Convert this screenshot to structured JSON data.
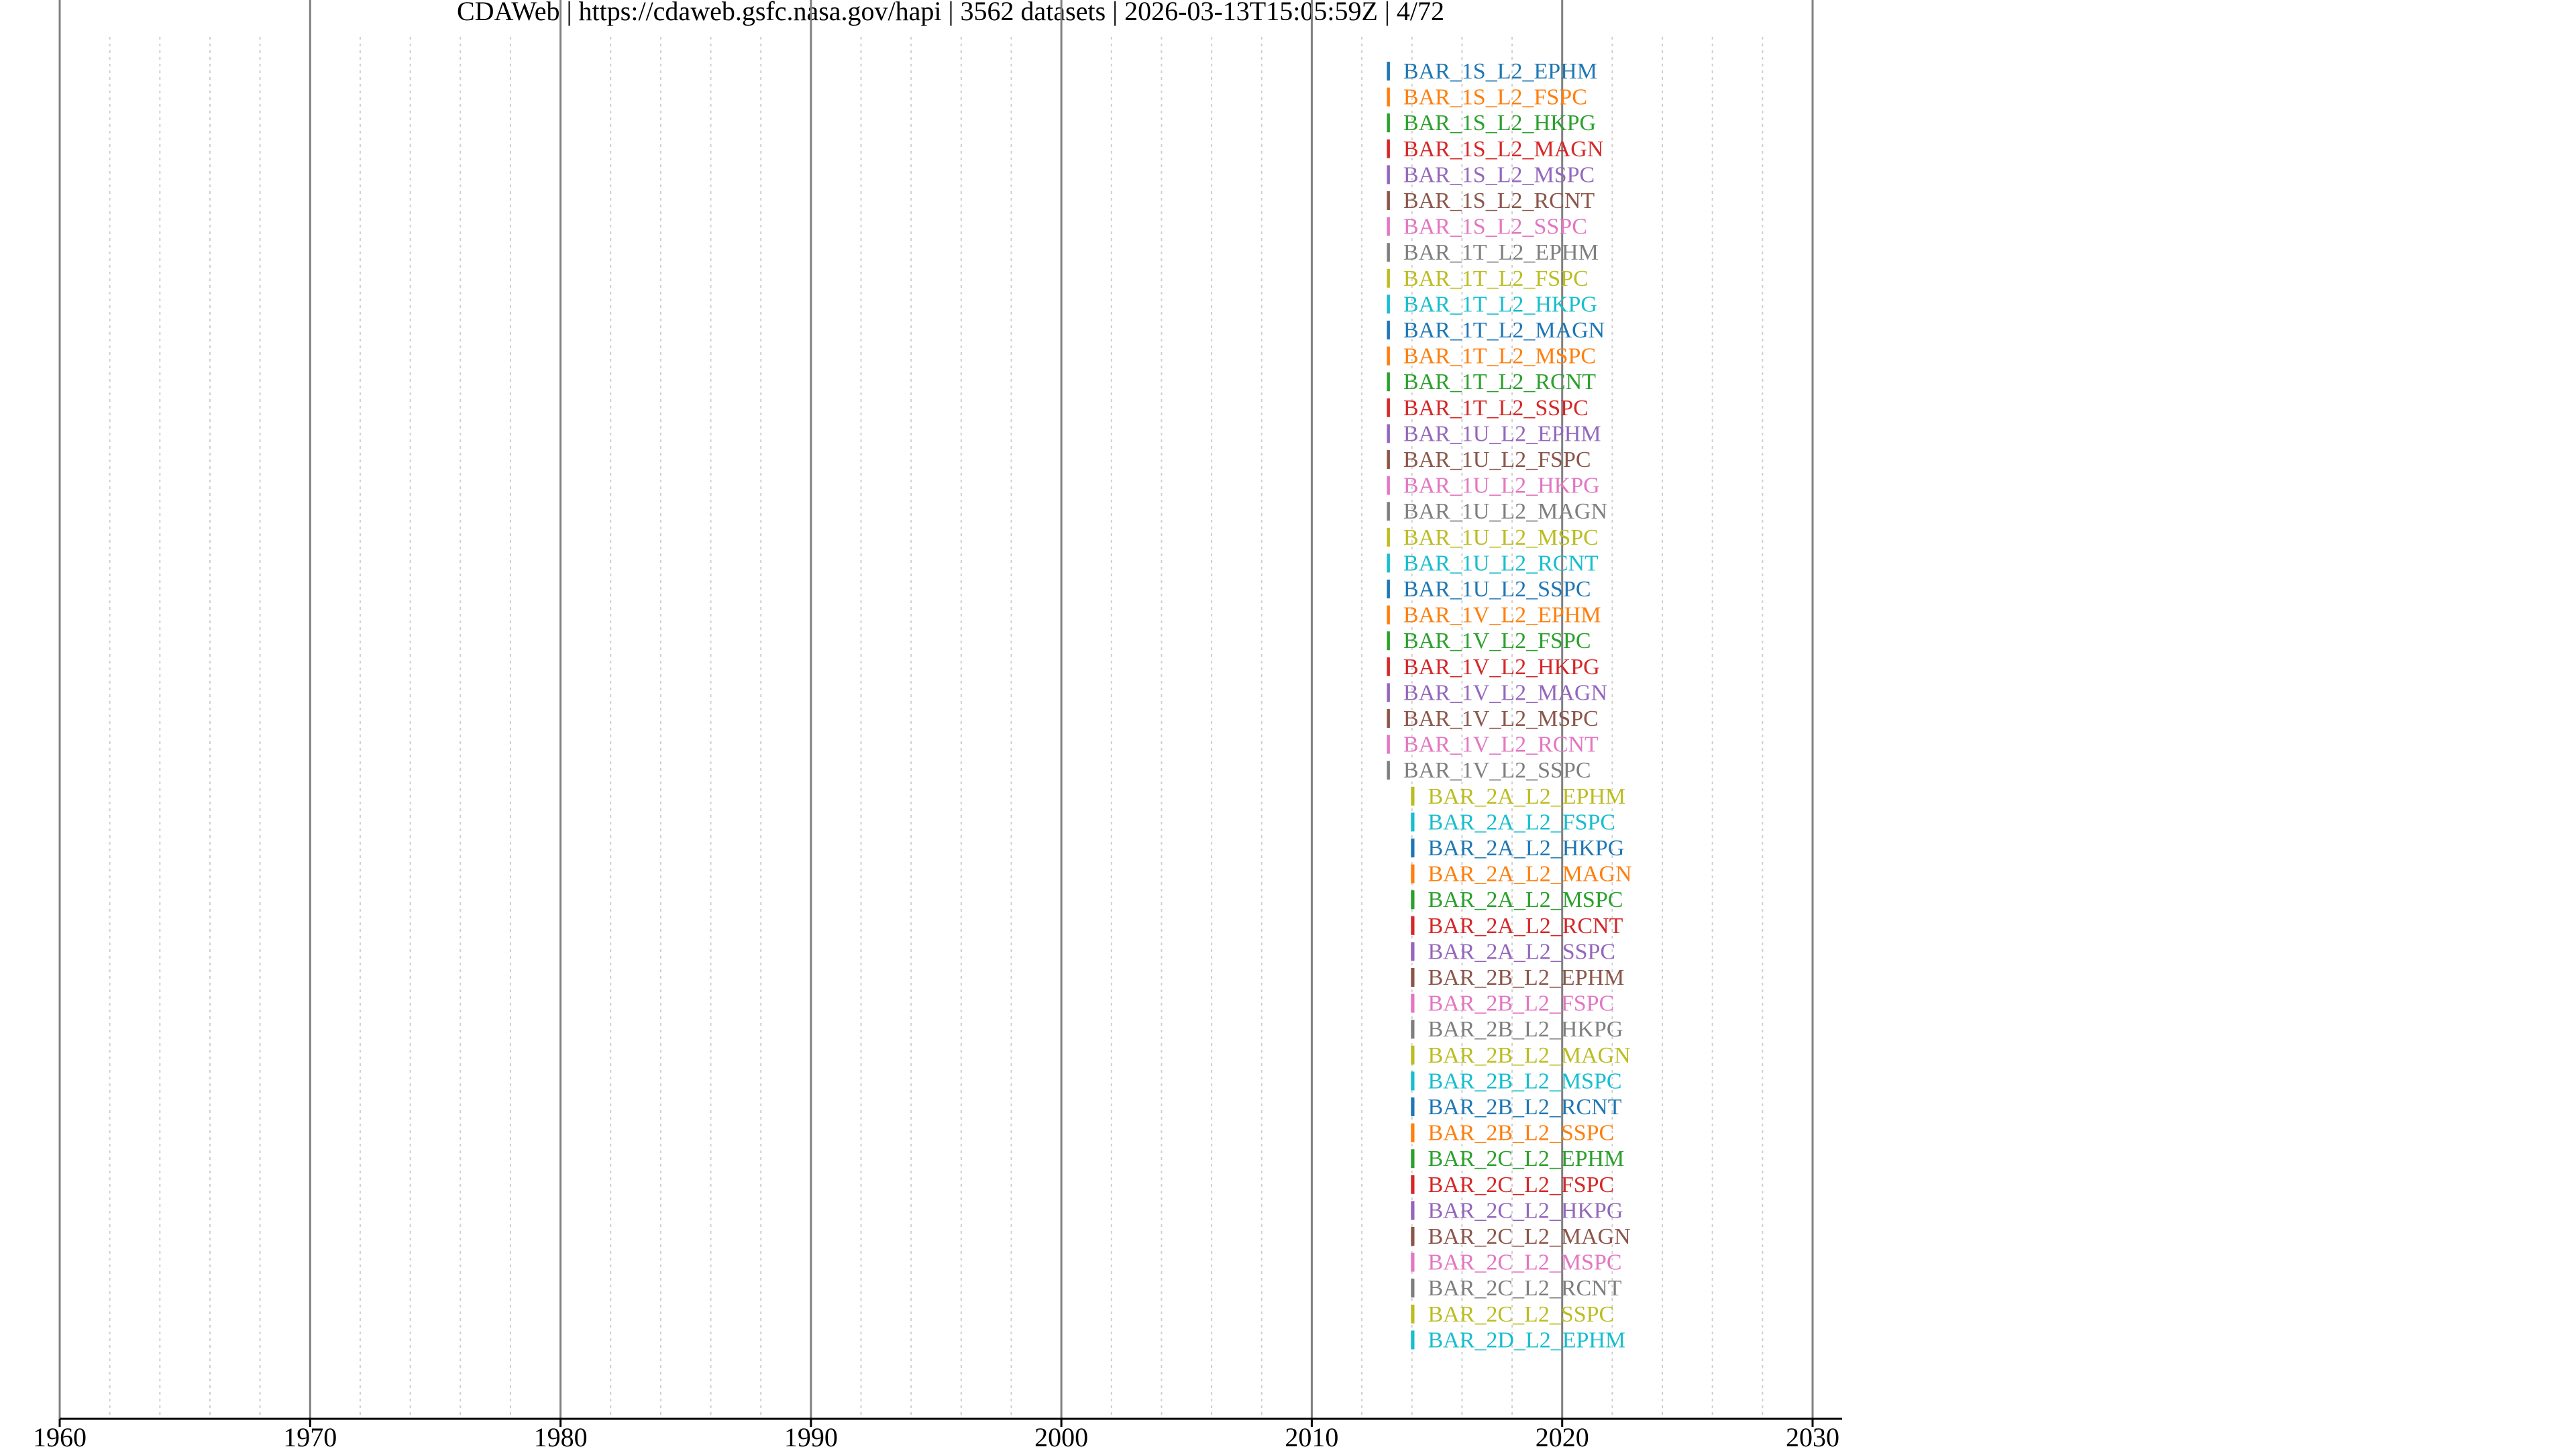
{
  "chart_data": {
    "type": "timeline",
    "title": "CDAWeb | https://cdaweb.gsfc.nasa.gov/hapi | 3562 datasets | 2026-03-13T15:05:59Z | 4/72",
    "xlim": [
      1960,
      2030
    ],
    "xticks": [
      1960,
      1970,
      1980,
      1990,
      2000,
      2010,
      2020,
      2030
    ],
    "xminor": [
      1962,
      1964,
      1966,
      1968,
      1972,
      1974,
      1976,
      1978,
      1982,
      1984,
      1986,
      1988,
      1992,
      1994,
      1996,
      1998,
      2002,
      2004,
      2006,
      2008,
      2012,
      2014,
      2016,
      2018,
      2022,
      2024,
      2026,
      2028
    ],
    "grid": true,
    "series": [
      {
        "name": "BAR_1S_L2_EPHM",
        "color": "#1f77b4",
        "values": [
          2013.0,
          2013.12
        ]
      },
      {
        "name": "BAR_1S_L2_FSPC",
        "color": "#ff7f0e",
        "values": [
          2013.0,
          2013.12
        ]
      },
      {
        "name": "BAR_1S_L2_HKPG",
        "color": "#2ca02c",
        "values": [
          2013.0,
          2013.12
        ]
      },
      {
        "name": "BAR_1S_L2_MAGN",
        "color": "#d62728",
        "values": [
          2013.0,
          2013.12
        ]
      },
      {
        "name": "BAR_1S_L2_MSPC",
        "color": "#9467bd",
        "values": [
          2013.0,
          2013.12
        ]
      },
      {
        "name": "BAR_1S_L2_RCNT",
        "color": "#8c564b",
        "values": [
          2013.0,
          2013.12
        ]
      },
      {
        "name": "BAR_1S_L2_SSPC",
        "color": "#e377c2",
        "values": [
          2013.0,
          2013.12
        ]
      },
      {
        "name": "BAR_1T_L2_EPHM",
        "color": "#7f7f7f",
        "values": [
          2013.0,
          2013.12
        ]
      },
      {
        "name": "BAR_1T_L2_FSPC",
        "color": "#bcbd22",
        "values": [
          2013.0,
          2013.12
        ]
      },
      {
        "name": "BAR_1T_L2_HKPG",
        "color": "#17becf",
        "values": [
          2013.0,
          2013.12
        ]
      },
      {
        "name": "BAR_1T_L2_MAGN",
        "color": "#1f77b4",
        "values": [
          2013.0,
          2013.12
        ]
      },
      {
        "name": "BAR_1T_L2_MSPC",
        "color": "#ff7f0e",
        "values": [
          2013.0,
          2013.12
        ]
      },
      {
        "name": "BAR_1T_L2_RCNT",
        "color": "#2ca02c",
        "values": [
          2013.0,
          2013.12
        ]
      },
      {
        "name": "BAR_1T_L2_SSPC",
        "color": "#d62728",
        "values": [
          2013.0,
          2013.12
        ]
      },
      {
        "name": "BAR_1U_L2_EPHM",
        "color": "#9467bd",
        "values": [
          2013.0,
          2013.12
        ]
      },
      {
        "name": "BAR_1U_L2_FSPC",
        "color": "#8c564b",
        "values": [
          2013.0,
          2013.12
        ]
      },
      {
        "name": "BAR_1U_L2_HKPG",
        "color": "#e377c2",
        "values": [
          2013.0,
          2013.12
        ]
      },
      {
        "name": "BAR_1U_L2_MAGN",
        "color": "#7f7f7f",
        "values": [
          2013.0,
          2013.12
        ]
      },
      {
        "name": "BAR_1U_L2_MSPC",
        "color": "#bcbd22",
        "values": [
          2013.0,
          2013.12
        ]
      },
      {
        "name": "BAR_1U_L2_RCNT",
        "color": "#17becf",
        "values": [
          2013.0,
          2013.12
        ]
      },
      {
        "name": "BAR_1U_L2_SSPC",
        "color": "#1f77b4",
        "values": [
          2013.0,
          2013.12
        ]
      },
      {
        "name": "BAR_1V_L2_EPHM",
        "color": "#ff7f0e",
        "values": [
          2013.0,
          2013.12
        ]
      },
      {
        "name": "BAR_1V_L2_FSPC",
        "color": "#2ca02c",
        "values": [
          2013.0,
          2013.12
        ]
      },
      {
        "name": "BAR_1V_L2_HKPG",
        "color": "#d62728",
        "values": [
          2013.0,
          2013.12
        ]
      },
      {
        "name": "BAR_1V_L2_MAGN",
        "color": "#9467bd",
        "values": [
          2013.0,
          2013.12
        ]
      },
      {
        "name": "BAR_1V_L2_MSPC",
        "color": "#8c564b",
        "values": [
          2013.0,
          2013.12
        ]
      },
      {
        "name": "BAR_1V_L2_RCNT",
        "color": "#e377c2",
        "values": [
          2013.0,
          2013.12
        ]
      },
      {
        "name": "BAR_1V_L2_SSPC",
        "color": "#7f7f7f",
        "values": [
          2013.0,
          2013.12
        ]
      },
      {
        "name": "BAR_2A_L2_EPHM",
        "color": "#bcbd22",
        "values": [
          2013.96,
          2014.1
        ]
      },
      {
        "name": "BAR_2A_L2_FSPC",
        "color": "#17becf",
        "values": [
          2013.96,
          2014.1
        ]
      },
      {
        "name": "BAR_2A_L2_HKPG",
        "color": "#1f77b4",
        "values": [
          2013.96,
          2014.1
        ]
      },
      {
        "name": "BAR_2A_L2_MAGN",
        "color": "#ff7f0e",
        "values": [
          2013.96,
          2014.1
        ]
      },
      {
        "name": "BAR_2A_L2_MSPC",
        "color": "#2ca02c",
        "values": [
          2013.96,
          2014.1
        ]
      },
      {
        "name": "BAR_2A_L2_RCNT",
        "color": "#d62728",
        "values": [
          2013.96,
          2014.1
        ]
      },
      {
        "name": "BAR_2A_L2_SSPC",
        "color": "#9467bd",
        "values": [
          2013.96,
          2014.1
        ]
      },
      {
        "name": "BAR_2B_L2_EPHM",
        "color": "#8c564b",
        "values": [
          2013.96,
          2014.1
        ]
      },
      {
        "name": "BAR_2B_L2_FSPC",
        "color": "#e377c2",
        "values": [
          2013.96,
          2014.1
        ]
      },
      {
        "name": "BAR_2B_L2_HKPG",
        "color": "#7f7f7f",
        "values": [
          2013.96,
          2014.1
        ]
      },
      {
        "name": "BAR_2B_L2_MAGN",
        "color": "#bcbd22",
        "values": [
          2013.96,
          2014.1
        ]
      },
      {
        "name": "BAR_2B_L2_MSPC",
        "color": "#17becf",
        "values": [
          2013.96,
          2014.1
        ]
      },
      {
        "name": "BAR_2B_L2_RCNT",
        "color": "#1f77b4",
        "values": [
          2013.96,
          2014.1
        ]
      },
      {
        "name": "BAR_2B_L2_SSPC",
        "color": "#ff7f0e",
        "values": [
          2013.96,
          2014.1
        ]
      },
      {
        "name": "BAR_2C_L2_EPHM",
        "color": "#2ca02c",
        "values": [
          2013.96,
          2014.1
        ]
      },
      {
        "name": "BAR_2C_L2_FSPC",
        "color": "#d62728",
        "values": [
          2013.96,
          2014.1
        ]
      },
      {
        "name": "BAR_2C_L2_HKPG",
        "color": "#9467bd",
        "values": [
          2013.96,
          2014.1
        ]
      },
      {
        "name": "BAR_2C_L2_MAGN",
        "color": "#8c564b",
        "values": [
          2013.96,
          2014.1
        ]
      },
      {
        "name": "BAR_2C_L2_MSPC",
        "color": "#e377c2",
        "values": [
          2013.96,
          2014.1
        ]
      },
      {
        "name": "BAR_2C_L2_RCNT",
        "color": "#7f7f7f",
        "values": [
          2013.96,
          2014.1
        ]
      },
      {
        "name": "BAR_2C_L2_SSPC",
        "color": "#bcbd22",
        "values": [
          2013.96,
          2014.1
        ]
      },
      {
        "name": "BAR_2D_L2_EPHM",
        "color": "#17becf",
        "values": [
          2013.96,
          2014.1
        ]
      }
    ]
  }
}
